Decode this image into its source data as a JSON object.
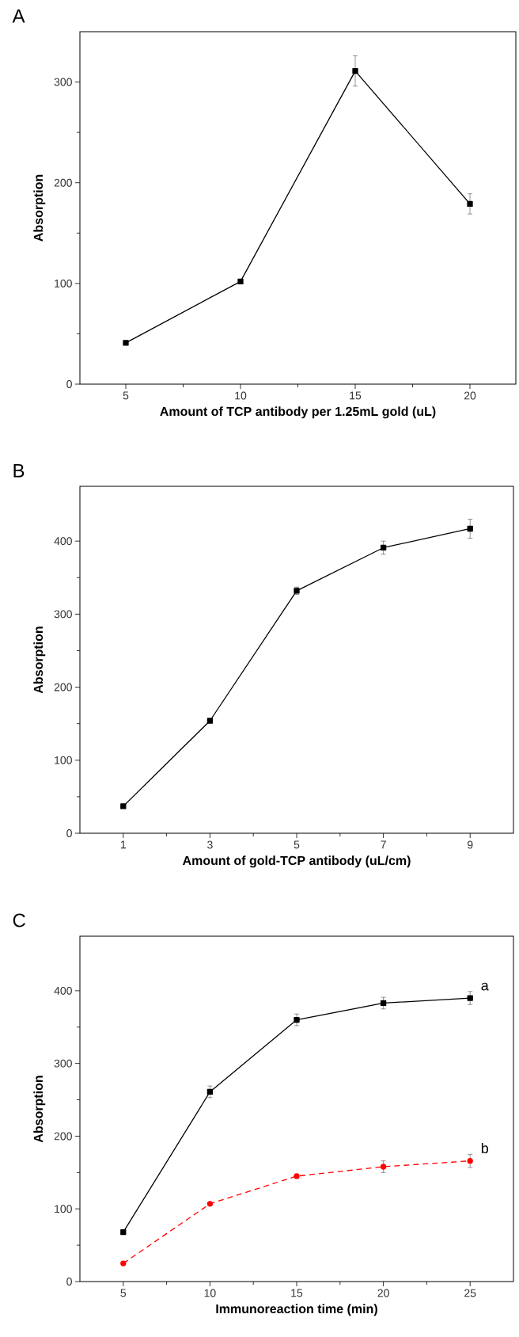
{
  "chart_data": [
    {
      "type": "line",
      "title": "A",
      "xlabel": "Amount of TCP antibody per 1.25mL gold (uL)",
      "ylabel": "Absorption",
      "x": [
        5,
        10,
        15,
        20
      ],
      "xlim": [
        3,
        22
      ],
      "ylim": [
        0,
        350
      ],
      "xticks": [
        5,
        10,
        15,
        20
      ],
      "yticks": [
        0,
        100,
        200,
        300
      ],
      "series": [
        {
          "color": "#000000",
          "values": [
            41,
            102,
            311,
            179
          ],
          "errors": [
            null,
            null,
            15,
            10
          ],
          "marker": "square",
          "line_style": "solid"
        }
      ]
    },
    {
      "type": "line",
      "title": "B",
      "xlabel": "Amount of gold-TCP antibody (uL/cm)",
      "ylabel": "Absorption",
      "x": [
        1,
        3,
        5,
        7,
        9
      ],
      "xlim": [
        0,
        10
      ],
      "ylim": [
        0,
        475
      ],
      "xticks": [
        1,
        3,
        5,
        7,
        9
      ],
      "yticks": [
        0,
        100,
        200,
        300,
        400
      ],
      "series": [
        {
          "color": "#000000",
          "values": [
            37,
            154,
            332,
            391,
            417
          ],
          "errors": [
            null,
            null,
            5,
            9,
            13
          ],
          "marker": "square",
          "line_style": "solid"
        }
      ]
    },
    {
      "type": "line",
      "title": "C",
      "xlabel": "Immunoreaction time (min)",
      "ylabel": "Absorption",
      "x": [
        5,
        10,
        15,
        20,
        25
      ],
      "xlim": [
        2.5,
        27.5
      ],
      "ylim": [
        0,
        475
      ],
      "xticks": [
        5,
        10,
        15,
        20,
        25
      ],
      "yticks": [
        0,
        100,
        200,
        300,
        400
      ],
      "series": [
        {
          "name": "a",
          "color": "#000000",
          "values": [
            68,
            261,
            360,
            383,
            390
          ],
          "errors": [
            null,
            8,
            8,
            8,
            9
          ],
          "marker": "square",
          "line_style": "solid"
        },
        {
          "name": "b",
          "color": "#ff0000",
          "values": [
            25,
            107,
            145,
            158,
            166
          ],
          "errors": [
            null,
            null,
            null,
            8,
            9
          ],
          "marker": "circle",
          "line_style": "dashed"
        }
      ]
    }
  ]
}
